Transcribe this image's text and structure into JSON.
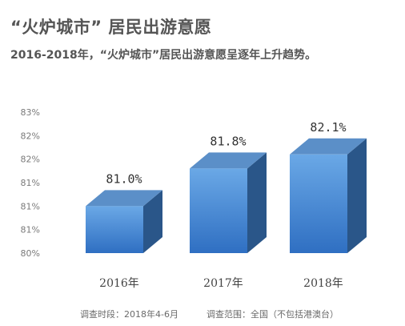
{
  "title": "“火炉城市” 居民出游意愿",
  "subtitle": "2016-2018年，“火炉城市”居民出游意愿呈逐年上升趋势。",
  "footer": {
    "period": "调查时段：2018年4-6月",
    "scope": "调查范围：全国（不包括港澳台）"
  },
  "chart_data": {
    "type": "bar",
    "style": "3d-column",
    "categories": [
      "2016年",
      "2017年",
      "2018年"
    ],
    "values": [
      81.0,
      81.8,
      82.1
    ],
    "data_labels": [
      "81.0%",
      "81.8%",
      "82.1%"
    ],
    "ylim": [
      80,
      83
    ],
    "yticks": [
      80,
      80.5,
      81,
      81.5,
      82,
      82.5,
      83
    ],
    "ytick_labels": [
      "80%",
      "81%",
      "81%",
      "81%",
      "82%",
      "82%",
      "83%"
    ],
    "xlabel": "",
    "ylabel": "",
    "grid": false,
    "legend": "none",
    "colors": {
      "front_top": "#6aa8e6",
      "front_bottom": "#2f6fc2",
      "top": "#5b8fc8",
      "side": "#2a5689"
    }
  }
}
